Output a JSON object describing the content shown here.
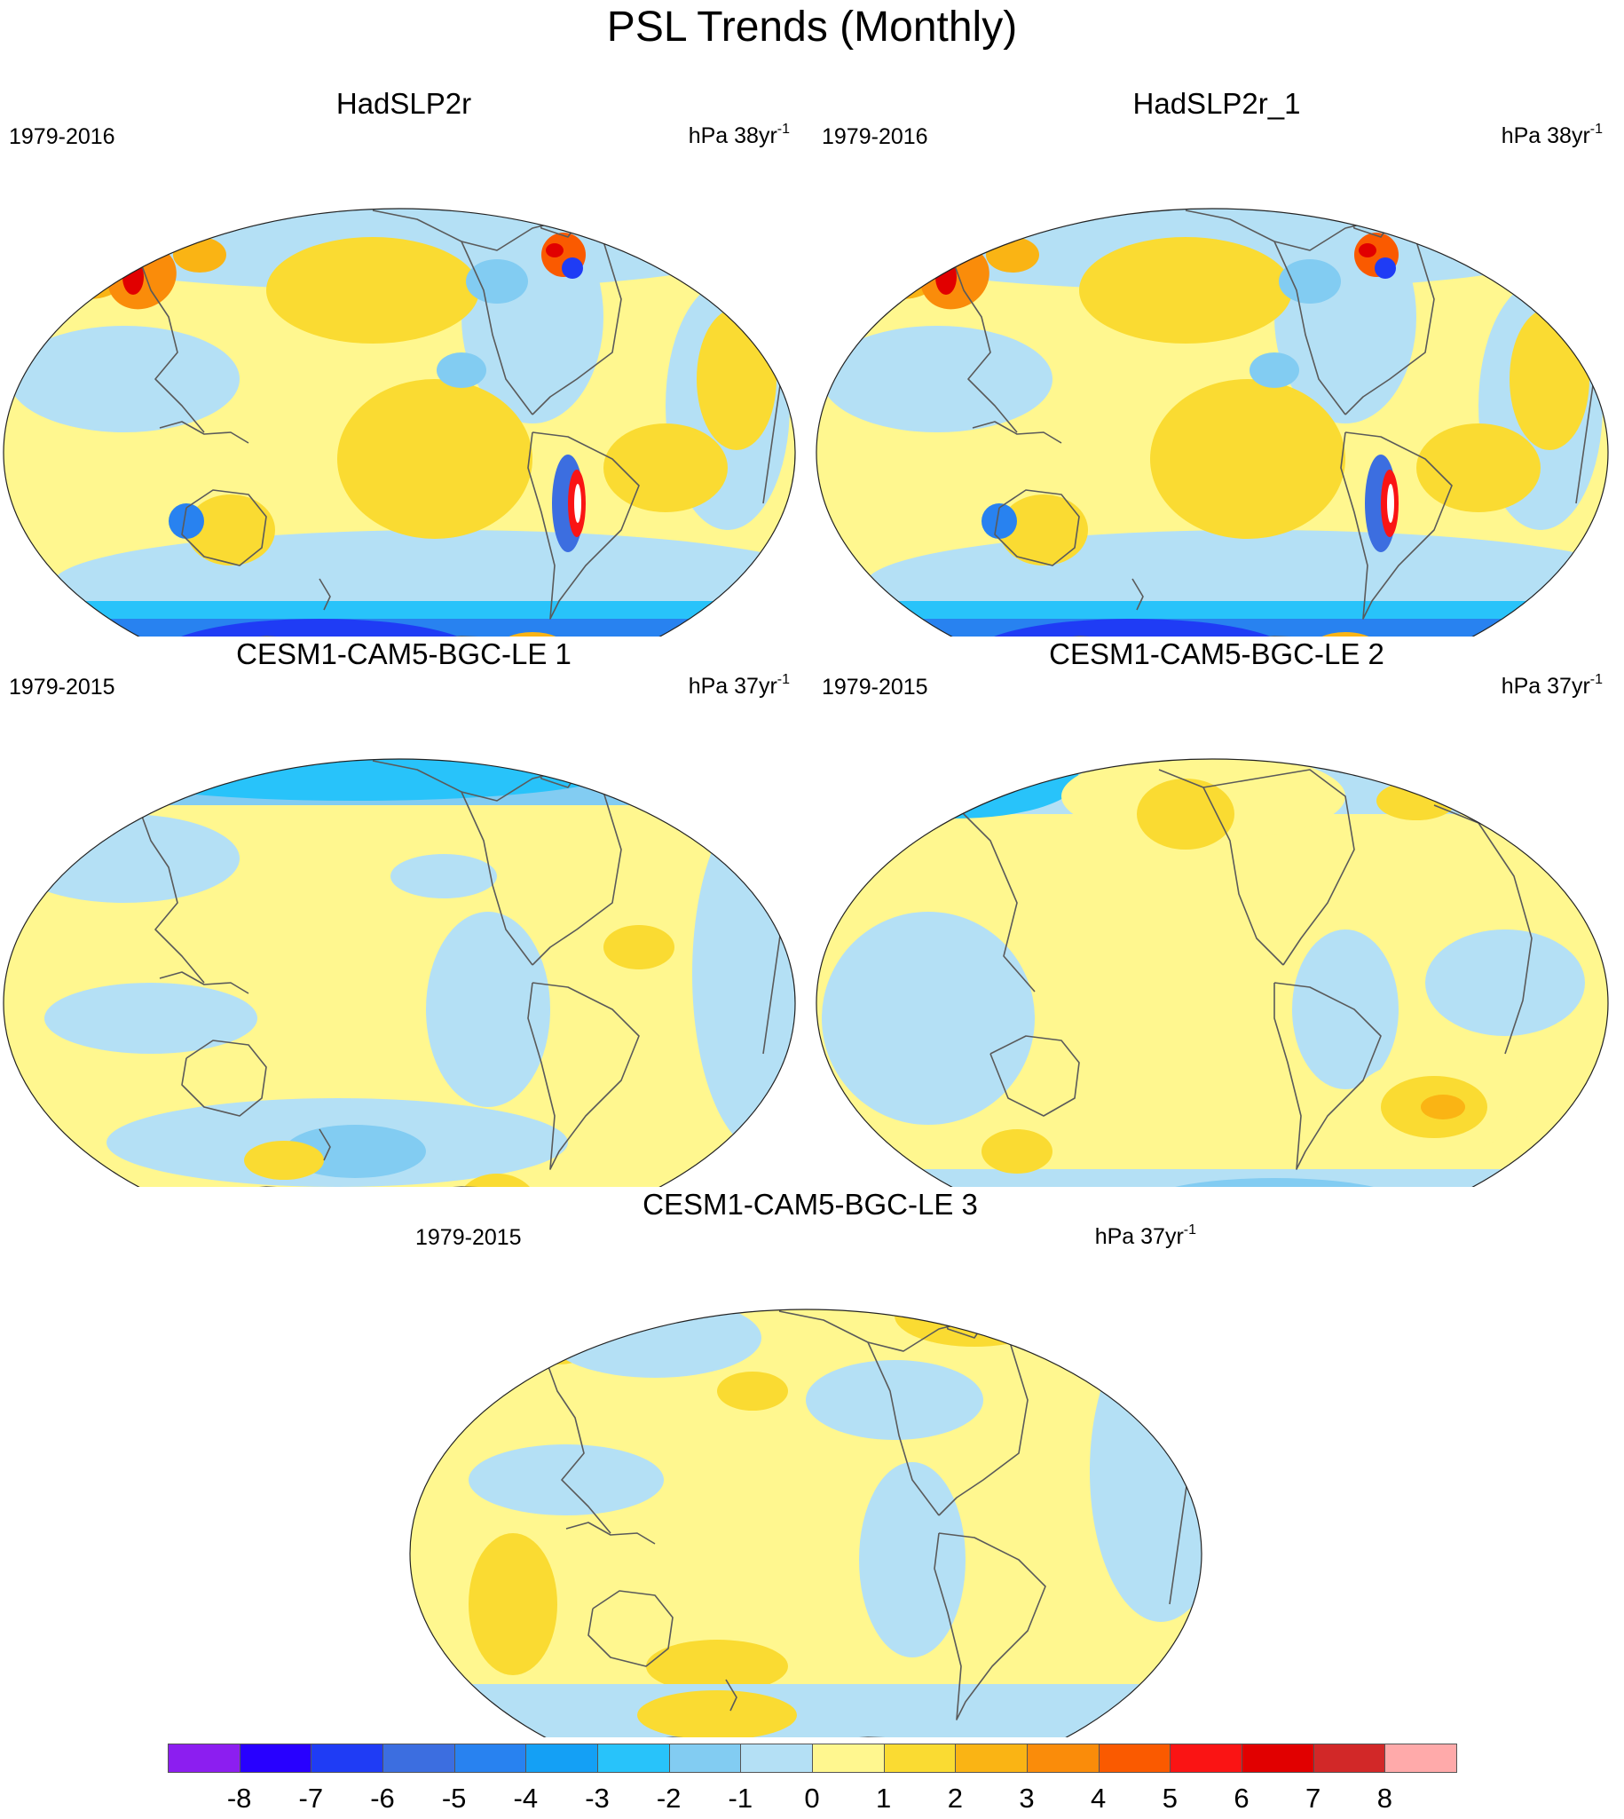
{
  "title": "PSL Trends (Monthly)",
  "panels": [
    {
      "name": "HadSLP2r",
      "period": "1979-2016",
      "units_text": "hPa 38yr",
      "units_exp": "-1",
      "style": "obs"
    },
    {
      "name": "HadSLP2r_1",
      "period": "1979-2016",
      "units_text": "hPa 38yr",
      "units_exp": "-1",
      "style": "obs"
    },
    {
      "name": "CESM1-CAM5-BGC-LE 1",
      "period": "1979-2015",
      "units_text": "hPa 37yr",
      "units_exp": "-1",
      "style": "m1"
    },
    {
      "name": "CESM1-CAM5-BGC-LE 2",
      "period": "1979-2015",
      "units_text": "hPa 37yr",
      "units_exp": "-1",
      "style": "m2"
    },
    {
      "name": "CESM1-CAM5-BGC-LE 3",
      "period": "1979-2015",
      "units_text": "hPa 37yr",
      "units_exp": "-1",
      "style": "m3"
    }
  ],
  "colorbar": {
    "labels": [
      "-8",
      "-7",
      "-6",
      "-5",
      "-4",
      "-3",
      "-2",
      "-1",
      "0",
      "1",
      "2",
      "3",
      "4",
      "5",
      "6",
      "7",
      "8"
    ],
    "colors": [
      "#8c1ef0",
      "#2800ff",
      "#1f3cf5",
      "#3c6ee0",
      "#2882f0",
      "#14a0f5",
      "#28c3fa",
      "#82ccf2",
      "#b4e0f5",
      "#fff78f",
      "#fadb32",
      "#fab414",
      "#fa8c0a",
      "#fa5a00",
      "#fa1414",
      "#e10000",
      "#d22828",
      "#ffaaaa"
    ]
  },
  "fields": {
    "base_color_obs": "#fff78f",
    "base_color_model": "#fff78f"
  }
}
